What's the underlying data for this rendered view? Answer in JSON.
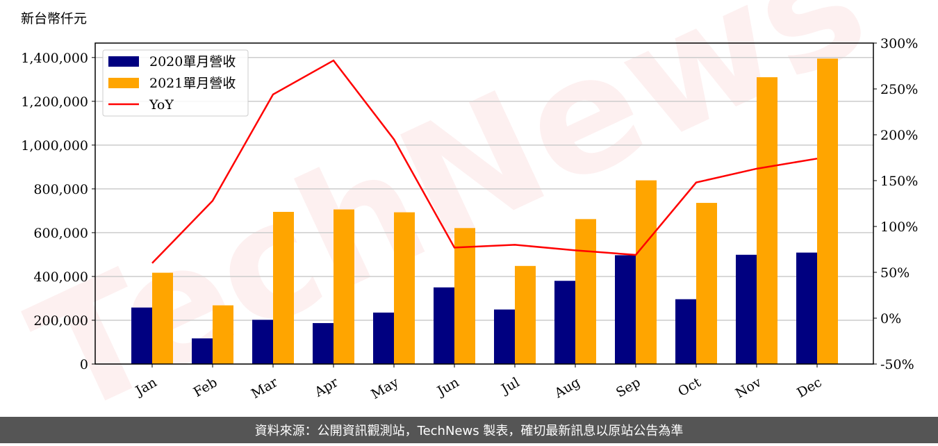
{
  "chart_data": {
    "type": "bar-line",
    "unit_label": "新台幣仟元",
    "watermark": "TechNews",
    "footer": "資料來源：公開資訊觀測站，TechNews 製表，確切最新訊息以原站公告為準",
    "categories": [
      "Jan",
      "Feb",
      "Mar",
      "Apr",
      "May",
      "Jun",
      "Jul",
      "Aug",
      "Sep",
      "Oct",
      "Nov",
      "Dec"
    ],
    "series": [
      {
        "name": "2020單月營收",
        "type": "bar",
        "color": "#000080",
        "values": [
          258000,
          117000,
          202000,
          187000,
          235000,
          350000,
          249000,
          380000,
          497000,
          296000,
          499000,
          509000
        ]
      },
      {
        "name": "2021單月營收",
        "type": "bar",
        "color": "#ffa500",
        "values": [
          417000,
          268000,
          695000,
          706000,
          693000,
          621000,
          448000,
          662000,
          839000,
          736000,
          1310000,
          1395000
        ]
      },
      {
        "name": "YoY",
        "type": "line",
        "axis": "y2",
        "color": "#ff0000",
        "values": [
          60,
          128,
          244,
          281,
          195,
          77,
          80,
          74,
          69,
          148,
          163,
          174
        ]
      }
    ],
    "ylim": [
      0,
      1466000
    ],
    "yticks": [
      0,
      {
        "value": 200000,
        "label": "200,000"
      },
      {
        "value": 400000,
        "label": "400,000"
      },
      {
        "value": 600000,
        "label": "600,000"
      },
      {
        "value": 800000,
        "label": "800,000"
      },
      {
        "value": 1000000,
        "label": "1,000,000"
      },
      {
        "value": 1200000,
        "label": "1,200,000"
      },
      {
        "value": 1400000,
        "label": "1,400,000"
      }
    ],
    "y2lim": [
      -50,
      300
    ],
    "y2ticks": [
      {
        "value": -50,
        "label": "-50%"
      },
      {
        "value": 0,
        "label": "0%"
      },
      {
        "value": 50,
        "label": "50%"
      },
      {
        "value": 100,
        "label": "100%"
      },
      {
        "value": 150,
        "label": "150%"
      },
      {
        "value": 200,
        "label": "200%"
      },
      {
        "value": 250,
        "label": "250%"
      },
      {
        "value": 300,
        "label": "300%"
      }
    ],
    "grid": true,
    "legend": "upper left"
  }
}
